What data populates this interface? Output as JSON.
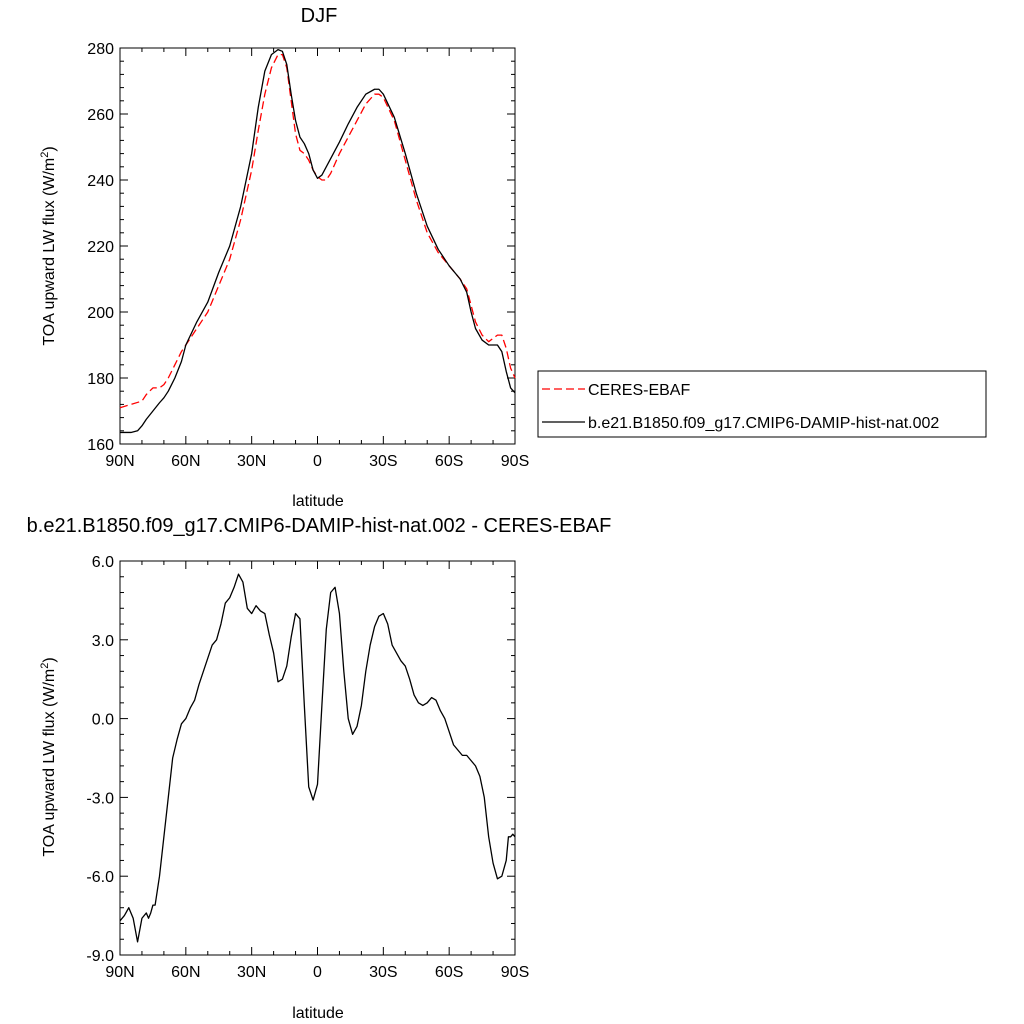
{
  "colors": {
    "obs": "#ff0000",
    "model": "#000000",
    "axis": "#000000"
  },
  "chart_data": [
    {
      "type": "line",
      "title": "DJF",
      "xlabel": "latitude",
      "ylabel": "TOA upward LW flux (W/m",
      "ylabel_sup": "2",
      "ylabel_close": ")",
      "xlim": [
        90,
        -90
      ],
      "ylim": [
        160,
        280
      ],
      "x_ticks": [
        {
          "v": 90,
          "label": "90N"
        },
        {
          "v": 60,
          "label": "60N"
        },
        {
          "v": 30,
          "label": "30N"
        },
        {
          "v": 0,
          "label": "0"
        },
        {
          "v": -30,
          "label": "30S"
        },
        {
          "v": -60,
          "label": "60S"
        },
        {
          "v": -90,
          "label": "90S"
        }
      ],
      "y_ticks": [
        {
          "v": 160,
          "label": "160"
        },
        {
          "v": 180,
          "label": "180"
        },
        {
          "v": 200,
          "label": "200"
        },
        {
          "v": 220,
          "label": "220"
        },
        {
          "v": 240,
          "label": "240"
        },
        {
          "v": 260,
          "label": "260"
        },
        {
          "v": 280,
          "label": "280"
        }
      ],
      "legend": {
        "placement": "right"
      },
      "series": [
        {
          "name": "CERES-EBAF",
          "style": "dashed",
          "color": "#ff0000",
          "x": [
            90,
            85,
            80,
            78,
            75,
            72,
            70,
            68,
            65,
            62,
            60,
            55,
            50,
            45,
            40,
            35,
            30,
            27,
            24,
            21,
            18,
            16,
            14,
            12,
            10,
            8,
            6,
            4,
            2,
            0,
            -2,
            -4,
            -6,
            -8,
            -10,
            -14,
            -18,
            -22,
            -26,
            -28,
            -30,
            -35,
            -40,
            -45,
            -50,
            -55,
            -60,
            -65,
            -68,
            -70,
            -72,
            -75,
            -78,
            -80,
            -82,
            -84,
            -86,
            -88,
            -90
          ],
          "y": [
            171,
            172,
            173,
            175,
            177,
            177,
            178,
            180,
            184,
            188,
            190,
            195,
            200,
            208,
            216,
            228,
            243,
            255,
            266,
            274,
            278,
            278,
            274,
            264,
            254,
            249,
            248,
            246,
            243,
            241,
            240,
            240,
            242,
            245,
            248,
            253,
            258,
            263,
            266,
            266,
            265,
            258,
            246,
            234,
            224,
            218,
            214,
            210,
            207,
            202,
            197,
            193,
            191,
            192,
            193,
            193,
            189,
            183,
            180
          ]
        },
        {
          "name": "b.e21.B1850.f09_g17.CMIP6-DAMIP-hist-nat.002",
          "style": "solid",
          "color": "#000000",
          "x": [
            90,
            85,
            82,
            80,
            78,
            75,
            72,
            70,
            68,
            65,
            62,
            60,
            55,
            50,
            45,
            40,
            35,
            30,
            27,
            24,
            21,
            18,
            16,
            14,
            12,
            10,
            8,
            6,
            4,
            2,
            0,
            -2,
            -4,
            -6,
            -8,
            -10,
            -14,
            -18,
            -22,
            -26,
            -28,
            -30,
            -35,
            -40,
            -45,
            -50,
            -55,
            -60,
            -65,
            -68,
            -70,
            -72,
            -75,
            -78,
            -80,
            -82,
            -84,
            -86,
            -88,
            -90
          ],
          "y": [
            163.5,
            163.5,
            164,
            165.5,
            167.5,
            170,
            172.5,
            174,
            176,
            180,
            185,
            190,
            197,
            203,
            212,
            220,
            232,
            248,
            262,
            273,
            278,
            279.5,
            279,
            275,
            266,
            258,
            253,
            251,
            248,
            243,
            240.5,
            241.5,
            244,
            246.5,
            249,
            251.5,
            257,
            262,
            266,
            267.5,
            267.5,
            266,
            259,
            248,
            236,
            226,
            219,
            214,
            210,
            206,
            200,
            195,
            191.5,
            190,
            190,
            190,
            188,
            182,
            177,
            175.5
          ]
        }
      ]
    },
    {
      "type": "line",
      "title": "b.e21.B1850.f09_g17.CMIP6-DAMIP-hist-nat.002 - CERES-EBAF",
      "xlabel": "latitude",
      "ylabel": "TOA upward LW flux (W/m",
      "ylabel_sup": "2",
      "ylabel_close": ")",
      "xlim": [
        90,
        -90
      ],
      "ylim": [
        -9,
        6
      ],
      "x_ticks": [
        {
          "v": 90,
          "label": "90N"
        },
        {
          "v": 60,
          "label": "60N"
        },
        {
          "v": 30,
          "label": "30N"
        },
        {
          "v": 0,
          "label": "0"
        },
        {
          "v": -30,
          "label": "30S"
        },
        {
          "v": -60,
          "label": "60S"
        },
        {
          "v": -90,
          "label": "90S"
        }
      ],
      "y_ticks": [
        {
          "v": -9,
          "label": "-9.0"
        },
        {
          "v": -6,
          "label": "-6.0"
        },
        {
          "v": -3,
          "label": "-3.0"
        },
        {
          "v": 0,
          "label": "0.0"
        },
        {
          "v": 3,
          "label": "3.0"
        },
        {
          "v": 6,
          "label": "6.0"
        }
      ],
      "series": [
        {
          "style": "solid",
          "color": "#000000",
          "x": [
            90,
            88,
            86,
            84,
            82,
            80,
            78,
            77,
            76,
            75,
            74,
            72,
            70,
            68,
            66,
            64,
            62,
            60,
            58,
            56,
            54,
            52,
            50,
            48,
            46,
            44,
            42,
            40,
            38,
            36,
            34,
            32,
            30,
            28,
            26,
            24,
            22,
            20,
            18,
            16,
            14,
            12,
            10,
            8,
            6,
            4,
            2,
            0,
            -2,
            -4,
            -6,
            -8,
            -10,
            -12,
            -14,
            -16,
            -18,
            -20,
            -22,
            -24,
            -26,
            -28,
            -30,
            -32,
            -34,
            -36,
            -38,
            -40,
            -42,
            -44,
            -46,
            -48,
            -50,
            -52,
            -54,
            -56,
            -58,
            -60,
            -62,
            -64,
            -66,
            -68,
            -70,
            -72,
            -74,
            -76,
            -78,
            -80,
            -82,
            -84,
            -86,
            -87,
            -88,
            -89,
            -90
          ],
          "y": [
            -7.7,
            -7.5,
            -7.2,
            -7.6,
            -8.5,
            -7.6,
            -7.4,
            -7.6,
            -7.4,
            -7.1,
            -7.1,
            -6,
            -4.5,
            -3,
            -1.5,
            -0.8,
            -0.2,
            0,
            0.4,
            0.7,
            1.3,
            1.8,
            2.3,
            2.8,
            3,
            3.6,
            4.4,
            4.6,
            5,
            5.5,
            5.2,
            4.2,
            4,
            4.3,
            4.1,
            4,
            3.2,
            2.5,
            1.4,
            1.5,
            2,
            3.1,
            4,
            3.8,
            0.5,
            -2.6,
            -3.1,
            -2.5,
            0.5,
            3.4,
            4.8,
            5,
            4,
            1.8,
            0,
            -0.6,
            -0.3,
            0.5,
            1.8,
            2.8,
            3.5,
            3.9,
            4,
            3.6,
            2.8,
            2.5,
            2.2,
            2,
            1.5,
            0.9,
            0.6,
            0.5,
            0.6,
            0.8,
            0.7,
            0.3,
            0,
            -0.5,
            -1,
            -1.2,
            -1.4,
            -1.4,
            -1.6,
            -1.8,
            -2.2,
            -3,
            -4.5,
            -5.5,
            -6.1,
            -6,
            -5.4,
            -4.5,
            -4.5,
            -4.4,
            -4.5
          ]
        }
      ]
    }
  ]
}
